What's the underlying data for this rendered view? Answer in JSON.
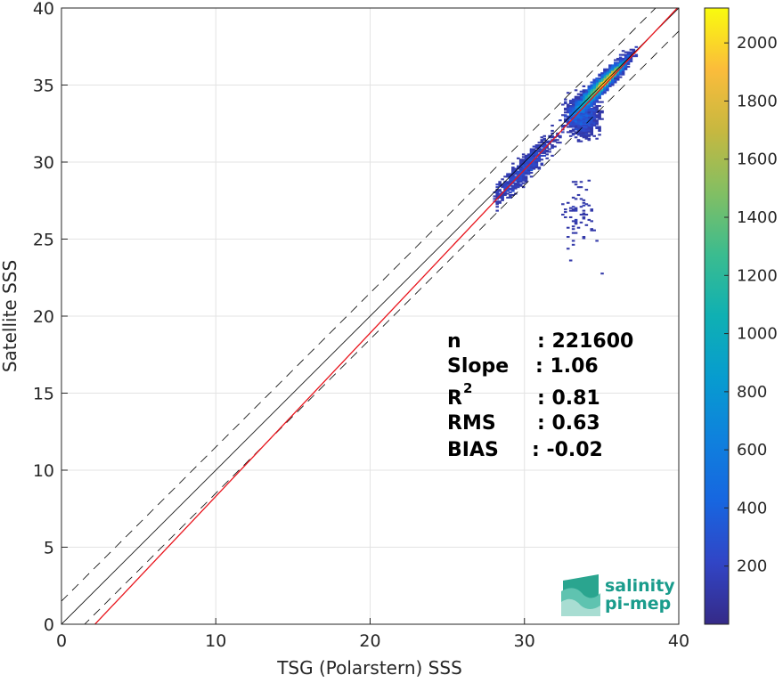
{
  "chart_data": {
    "type": "heatmap",
    "xlabel": "TSG (Polarstern) SSS",
    "ylabel": "Satellite SSS",
    "xlim": [
      0,
      40
    ],
    "ylim": [
      0,
      40
    ],
    "xticks": [
      "0",
      "10",
      "20",
      "30",
      "40"
    ],
    "yticks": [
      "0",
      "5",
      "10",
      "15",
      "20",
      "25",
      "30",
      "35",
      "40"
    ],
    "grid": true,
    "colorbar": {
      "range": [
        0,
        2120
      ],
      "ticks": [
        "200",
        "400",
        "600",
        "800",
        "1000",
        "1200",
        "1400",
        "1600",
        "1800",
        "2000"
      ],
      "tick_values": [
        200,
        400,
        600,
        800,
        1000,
        1200,
        1400,
        1600,
        1800,
        2000
      ],
      "colormap": "parula"
    },
    "reference_lines": [
      {
        "name": "identity",
        "slope": 1,
        "intercept": 0,
        "style": "solid",
        "color": "#000000"
      },
      {
        "name": "upper bound",
        "slope": 1,
        "intercept": 1.5,
        "style": "dashed",
        "color": "#000000"
      },
      {
        "name": "lower bound",
        "slope": 1,
        "intercept": -1.5,
        "style": "dashed",
        "color": "#000000"
      },
      {
        "name": "regression",
        "slope": 1.06,
        "intercept": -2.3,
        "style": "solid",
        "color": "#e8141c"
      }
    ],
    "density_clusters": [
      {
        "x": 35.2,
        "y": 35.2,
        "count": 2000
      },
      {
        "x": 34.5,
        "y": 34.6,
        "count": 800
      },
      {
        "x": 36.5,
        "y": 36.6,
        "count": 600
      },
      {
        "x": 33.5,
        "y": 33.0,
        "count": 300
      },
      {
        "x": 31.0,
        "y": 30.5,
        "count": 150
      },
      {
        "x": 29.5,
        "y": 29.0,
        "count": 80
      }
    ],
    "stats": [
      {
        "key": "n",
        "value": ": 221600"
      },
      {
        "key": "Slope",
        "value": ": 1.06"
      },
      {
        "key": "R",
        "sup": "2",
        "value": ": 0.81"
      },
      {
        "key": "RMS",
        "value": ": 0.63"
      },
      {
        "key": "BIAS",
        "value": ": -0.02"
      }
    ]
  },
  "logo": {
    "line1": "salinity",
    "line2": "pi-mep"
  }
}
